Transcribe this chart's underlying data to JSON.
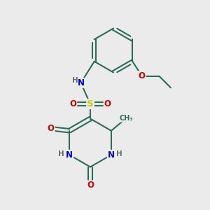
{
  "bg_color": "#ebebeb",
  "bond_color": "#2d6b5a",
  "bond_width": 1.5,
  "atom_colors": {
    "N": "#0000cc",
    "O": "#cc0000",
    "S": "#cccc00",
    "C": "#2d6b5a",
    "H": "#607070"
  },
  "font_size": 8.5,
  "fig_bg": "#ebebeb"
}
